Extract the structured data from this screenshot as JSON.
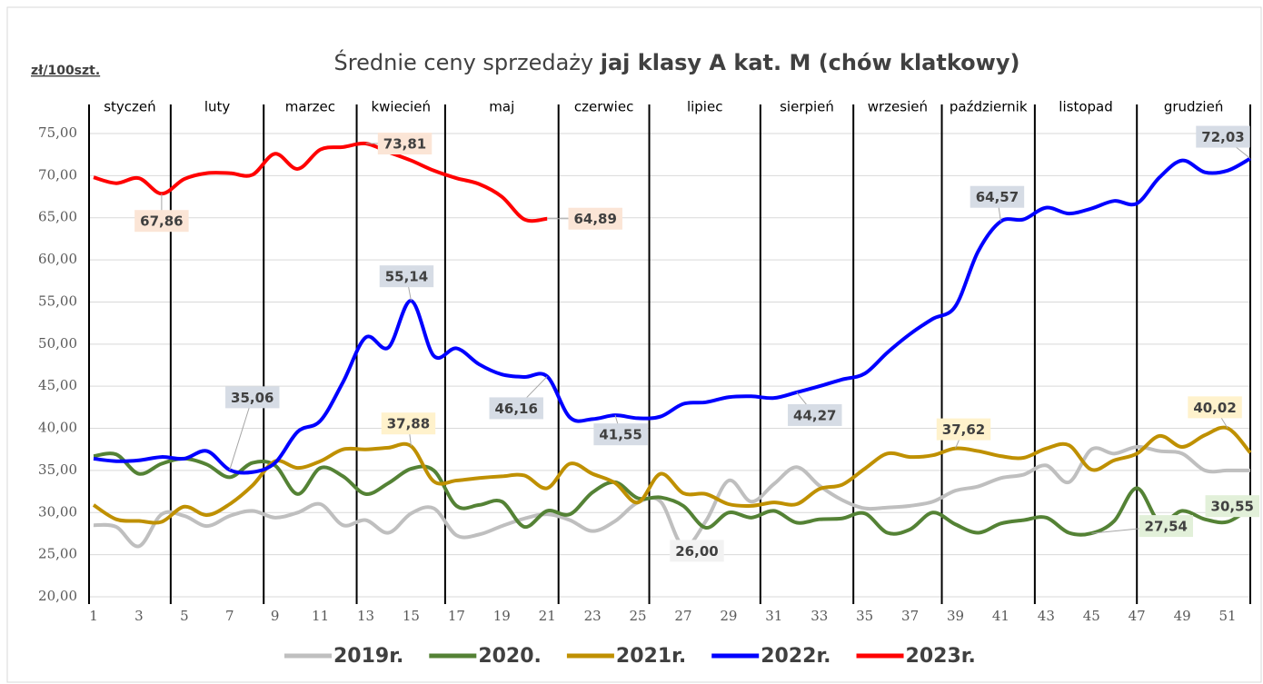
{
  "chart_data": {
    "type": "line",
    "title": "Średnie ceny sprzedaży",
    "title_bold": "jaj klasy A kat.  M (chów klatkowy)",
    "y_unit": "zł/100szt.",
    "months": [
      "styczeń",
      "luty",
      "marzec",
      "kwiecień",
      "maj",
      "czerwiec",
      "lipiec",
      "sierpień",
      "wrzesień",
      "październik",
      "listopad",
      "grudzień"
    ],
    "month_dividers": [
      0.8,
      4.4,
      8.5,
      12.6,
      16.5,
      21.5,
      25.5,
      30.4,
      34.5,
      38.4,
      42.5,
      47.0,
      52
    ],
    "x": [
      1,
      2,
      3,
      4,
      5,
      6,
      7,
      8,
      9,
      10,
      11,
      12,
      13,
      14,
      15,
      16,
      17,
      18,
      19,
      20,
      21,
      22,
      23,
      24,
      25,
      26,
      27,
      28,
      29,
      30,
      31,
      32,
      33,
      34,
      35,
      36,
      37,
      38,
      39,
      40,
      41,
      42,
      43,
      44,
      45,
      46,
      47,
      48,
      49,
      50,
      51,
      52
    ],
    "xlim": [
      1,
      52
    ],
    "xticks": [
      1,
      3,
      5,
      7,
      9,
      11,
      13,
      15,
      17,
      19,
      21,
      23,
      25,
      27,
      29,
      31,
      33,
      35,
      37,
      39,
      41,
      43,
      45,
      47,
      49,
      51
    ],
    "ylim": [
      20,
      75
    ],
    "yticks": [
      {
        "value": 20,
        "label": "20,00"
      },
      {
        "value": 25,
        "label": "25,00"
      },
      {
        "value": 30,
        "label": "30,00"
      },
      {
        "value": 35,
        "label": "35,00"
      },
      {
        "value": 40,
        "label": "40,00"
      },
      {
        "value": 45,
        "label": "45,00"
      },
      {
        "value": 50,
        "label": "50,00"
      },
      {
        "value": 55,
        "label": "55,00"
      },
      {
        "value": 60,
        "label": "60,00"
      },
      {
        "value": 65,
        "label": "65,00"
      },
      {
        "value": 70,
        "label": "70,00"
      },
      {
        "value": 75,
        "label": "75,00"
      }
    ],
    "grid": true,
    "legend": "bottom",
    "series": [
      {
        "name": "2019r.",
        "color": "#bfbfbf",
        "values": [
          28.5,
          28.3,
          26.0,
          29.8,
          29.6,
          28.4,
          29.6,
          30.2,
          29.4,
          30.0,
          31.0,
          28.5,
          29.1,
          27.6,
          29.9,
          30.5,
          27.3,
          27.4,
          28.4,
          29.3,
          29.8,
          29.1,
          27.8,
          29.0,
          31.2,
          31.3,
          26.0,
          29.0,
          33.8,
          31.3,
          33.4,
          35.4,
          33.2,
          31.5,
          30.5,
          30.6,
          30.8,
          31.3,
          32.6,
          33.1,
          34.1,
          34.5,
          35.6,
          33.6,
          37.5,
          37.0,
          37.8,
          37.3,
          37.0,
          35.0,
          35.0,
          35.0
        ],
        "value_labels": [
          null,
          null,
          null,
          null,
          null,
          null,
          null,
          null,
          null,
          null,
          null,
          null,
          null,
          null,
          null,
          null,
          null,
          null,
          null,
          null,
          null,
          null,
          null,
          null,
          null,
          null,
          "26,00",
          null,
          null,
          null,
          null,
          null,
          null,
          null,
          null,
          null,
          null,
          null,
          null,
          null,
          null,
          null,
          null,
          null,
          null,
          null,
          null,
          null,
          null,
          null,
          null,
          null
        ]
      },
      {
        "name": "2020.",
        "color": "#548235",
        "values": [
          36.7,
          36.9,
          34.6,
          35.8,
          36.4,
          35.7,
          34.2,
          35.9,
          35.6,
          32.2,
          35.3,
          34.3,
          32.2,
          33.5,
          35.2,
          35.0,
          30.8,
          30.9,
          31.3,
          28.3,
          30.2,
          29.8,
          32.4,
          33.6,
          31.7,
          31.8,
          30.8,
          28.2,
          30.0,
          29.4,
          30.2,
          28.8,
          29.2,
          29.3,
          29.9,
          27.6,
          28.0,
          30.0,
          28.6,
          27.6,
          28.7,
          29.1,
          29.4,
          27.6,
          27.54,
          29.0,
          32.9,
          28.9,
          30.2,
          29.2,
          28.9,
          30.55
        ],
        "value_labels": [
          null,
          null,
          null,
          null,
          null,
          null,
          null,
          null,
          null,
          null,
          null,
          null,
          null,
          null,
          null,
          null,
          null,
          null,
          null,
          null,
          null,
          null,
          null,
          null,
          null,
          null,
          null,
          null,
          null,
          null,
          null,
          null,
          null,
          null,
          null,
          null,
          null,
          null,
          null,
          null,
          null,
          null,
          null,
          null,
          "27,54",
          null,
          null,
          null,
          null,
          null,
          null,
          "30,55"
        ]
      },
      {
        "name": "2021r.",
        "color": "#bf9000",
        "values": [
          30.9,
          29.2,
          29.0,
          28.9,
          30.7,
          29.7,
          31.0,
          33.2,
          36.1,
          35.3,
          36.1,
          37.5,
          37.5,
          37.7,
          37.88,
          33.7,
          33.8,
          34.1,
          34.3,
          34.4,
          32.9,
          35.8,
          34.6,
          33.5,
          31.2,
          34.6,
          32.3,
          32.2,
          31.0,
          30.8,
          31.2,
          31.0,
          32.8,
          33.3,
          35.2,
          37.0,
          36.6,
          36.8,
          37.62,
          37.3,
          36.7,
          36.5,
          37.6,
          38.0,
          35.1,
          36.2,
          37.0,
          39.1,
          37.8,
          39.2,
          40.02,
          37.1
        ],
        "value_labels": [
          null,
          null,
          null,
          null,
          null,
          null,
          null,
          null,
          null,
          null,
          null,
          null,
          null,
          null,
          "37,88",
          null,
          null,
          null,
          null,
          null,
          null,
          null,
          null,
          null,
          null,
          null,
          null,
          null,
          null,
          null,
          null,
          null,
          null,
          null,
          null,
          null,
          null,
          null,
          "37,62",
          null,
          null,
          null,
          null,
          null,
          null,
          null,
          null,
          null,
          null,
          null,
          "40,02",
          null
        ]
      },
      {
        "name": "2022r.",
        "color": "#0000ff",
        "values": [
          36.4,
          36.1,
          36.2,
          36.6,
          36.4,
          37.3,
          35.06,
          34.8,
          35.9,
          39.6,
          40.9,
          45.5,
          50.8,
          49.6,
          55.14,
          48.6,
          49.5,
          47.6,
          46.4,
          46.1,
          46.16,
          41.3,
          41.1,
          41.55,
          41.2,
          41.4,
          42.9,
          43.1,
          43.7,
          43.8,
          43.6,
          44.27,
          45.0,
          45.8,
          46.5,
          49.0,
          51.2,
          53.0,
          54.5,
          61.0,
          64.57,
          64.8,
          66.2,
          65.5,
          66.1,
          67.0,
          66.7,
          69.8,
          71.8,
          70.4,
          70.6,
          72.03
        ],
        "value_labels": [
          null,
          null,
          null,
          null,
          null,
          null,
          "35,06",
          null,
          null,
          null,
          null,
          null,
          null,
          null,
          "55,14",
          null,
          null,
          null,
          null,
          null,
          "46,16",
          null,
          null,
          "41,55",
          null,
          null,
          null,
          null,
          null,
          null,
          null,
          "44,27",
          null,
          null,
          null,
          null,
          null,
          null,
          null,
          null,
          "64,57",
          null,
          null,
          null,
          null,
          null,
          null,
          null,
          null,
          null,
          null,
          "72,03"
        ]
      },
      {
        "name": "2023r.",
        "color": "#ff0000",
        "values": [
          69.8,
          69.1,
          69.7,
          67.86,
          69.6,
          70.3,
          70.3,
          70.1,
          72.6,
          70.8,
          73.1,
          73.4,
          73.81,
          72.8,
          71.8,
          70.6,
          69.7,
          69.0,
          67.5,
          64.8,
          64.89,
          null,
          null,
          null,
          null,
          null,
          null,
          null,
          null,
          null,
          null,
          null,
          null,
          null,
          null,
          null,
          null,
          null,
          null,
          null,
          null,
          null,
          null,
          null,
          null,
          null,
          null,
          null,
          null,
          null,
          null,
          null
        ],
        "value_labels": [
          null,
          null,
          null,
          "67,86",
          null,
          null,
          null,
          null,
          null,
          null,
          null,
          null,
          "73,81",
          null,
          null,
          null,
          null,
          null,
          null,
          null,
          "64,89",
          null,
          null,
          null,
          null,
          null,
          null,
          null,
          null,
          null,
          null,
          null,
          null,
          null,
          null,
          null,
          null,
          null,
          null,
          null,
          null,
          null,
          null,
          null,
          null,
          null,
          null,
          null,
          null,
          null,
          null,
          null
        ]
      }
    ]
  }
}
